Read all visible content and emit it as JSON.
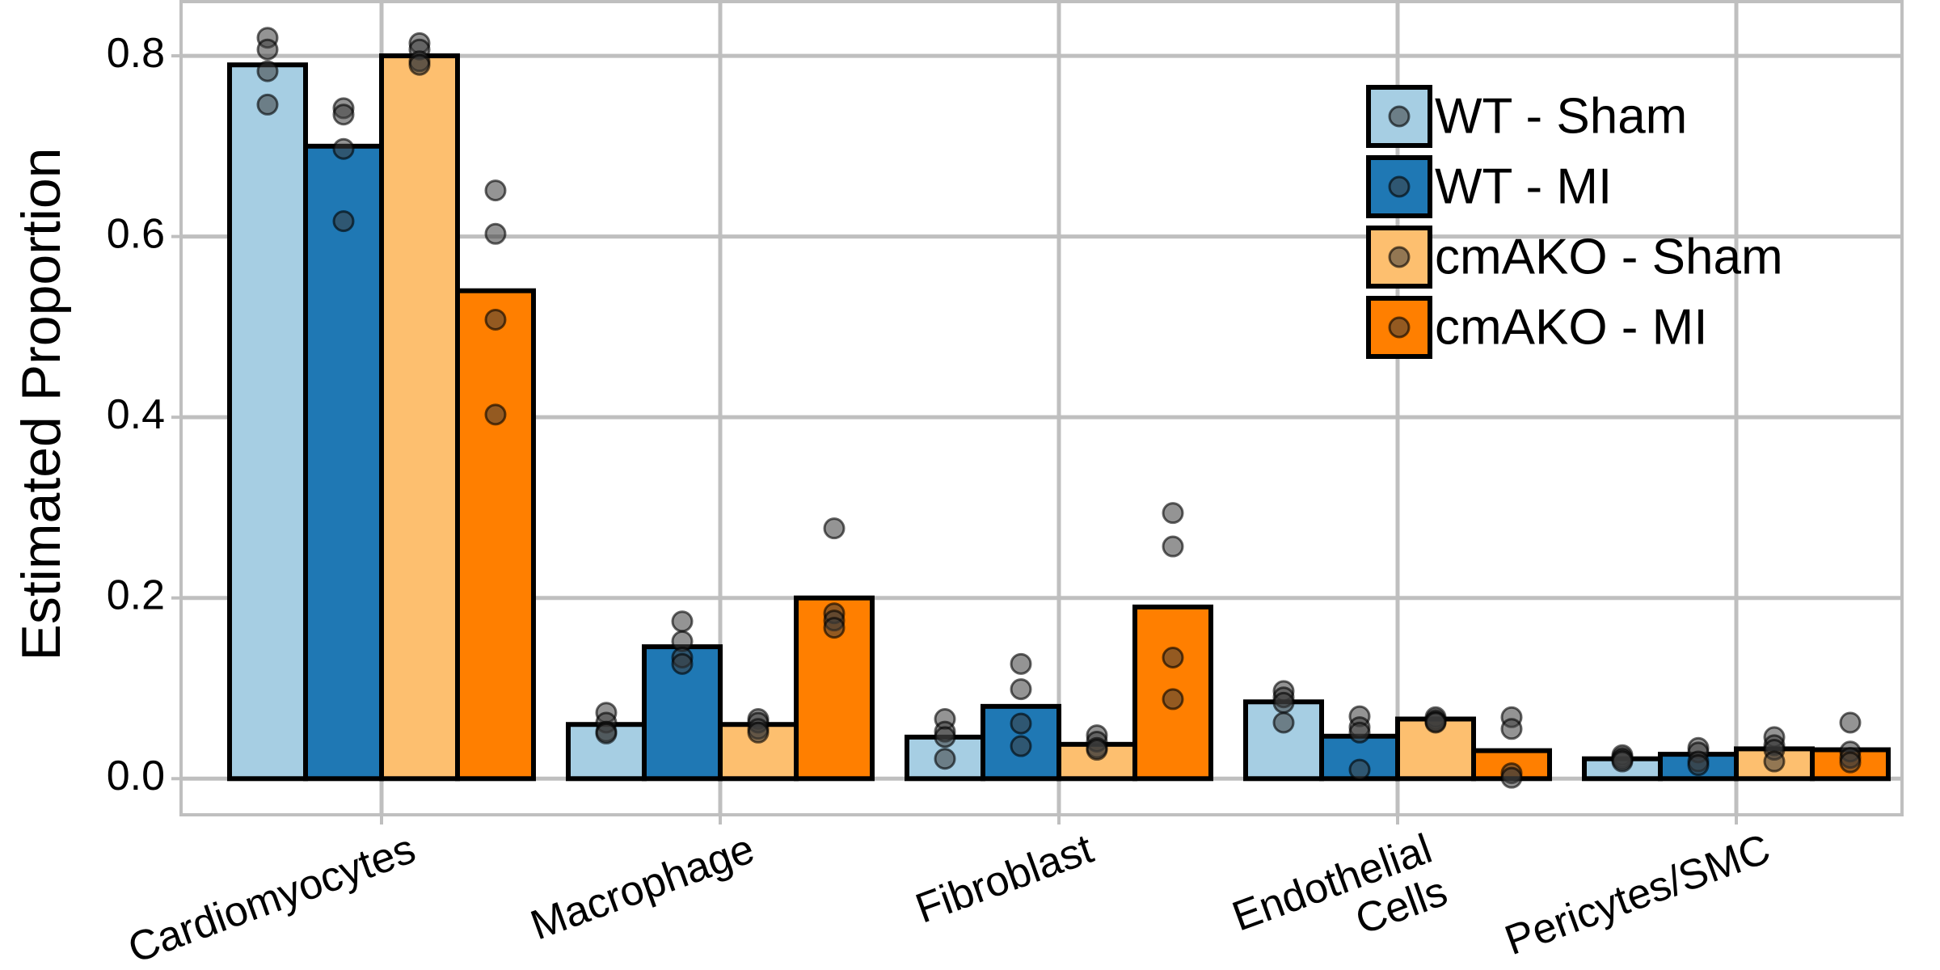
{
  "chart_data": {
    "type": "bar",
    "ylabel": "Estimated Proportion",
    "categories": [
      "Cardiomyocytes",
      "Macrophage",
      "Fibroblast",
      "Endothelial\nCells",
      "Pericytes/SMC"
    ],
    "series": [
      {
        "name": "WT - Sham",
        "color": "#a6cee3",
        "values": [
          0.79,
          0.06,
          0.046,
          0.085,
          0.022
        ],
        "points": [
          [
            0.82,
            0.807,
            0.783,
            0.746
          ],
          [
            0.073,
            0.062,
            0.052,
            0.05
          ],
          [
            0.066,
            0.052,
            0.046,
            0.022
          ],
          [
            0.097,
            0.09,
            0.084,
            0.062
          ],
          [
            0.026,
            0.023,
            0.021,
            0.019
          ]
        ]
      },
      {
        "name": "WT - MI",
        "color": "#1f78b4",
        "values": [
          0.7,
          0.146,
          0.08,
          0.047,
          0.027
        ],
        "points": [
          [
            0.742,
            0.735,
            0.697,
            0.617
          ],
          [
            0.174,
            0.152,
            0.134,
            0.127
          ],
          [
            0.127,
            0.099,
            0.061,
            0.036
          ],
          [
            0.069,
            0.057,
            0.051,
            0.01
          ],
          [
            0.034,
            0.029,
            0.019,
            0.015
          ]
        ]
      },
      {
        "name": "cmAKO - Sham",
        "color": "#fdbf6f",
        "values": [
          0.8,
          0.06,
          0.038,
          0.066,
          0.033
        ],
        "points": [
          [
            0.814,
            0.807,
            0.794,
            0.79
          ],
          [
            0.066,
            0.062,
            0.055,
            0.051
          ],
          [
            0.048,
            0.041,
            0.034,
            0.032
          ],
          [
            0.068,
            0.065,
            0.063,
            0.062
          ],
          [
            0.046,
            0.037,
            0.032,
            0.019
          ]
        ]
      },
      {
        "name": "cmAKO - MI",
        "color": "#ff7f00",
        "values": [
          0.54,
          0.2,
          0.19,
          0.031,
          0.032
        ],
        "points": [
          [
            0.651,
            0.603,
            0.508,
            0.403
          ],
          [
            0.277,
            0.183,
            0.175,
            0.167
          ],
          [
            0.294,
            0.257,
            0.134,
            0.088
          ],
          [
            0.068,
            0.055,
            0.006,
            0.001
          ],
          [
            0.062,
            0.03,
            0.023,
            0.018
          ]
        ]
      }
    ],
    "ylim": [
      -0.04,
      0.86
    ],
    "yticks": [
      {
        "value": 0,
        "label": "0.0"
      },
      0.2,
      0.4,
      0.6,
      0.8
    ],
    "grid": true,
    "legend": "upper right"
  }
}
